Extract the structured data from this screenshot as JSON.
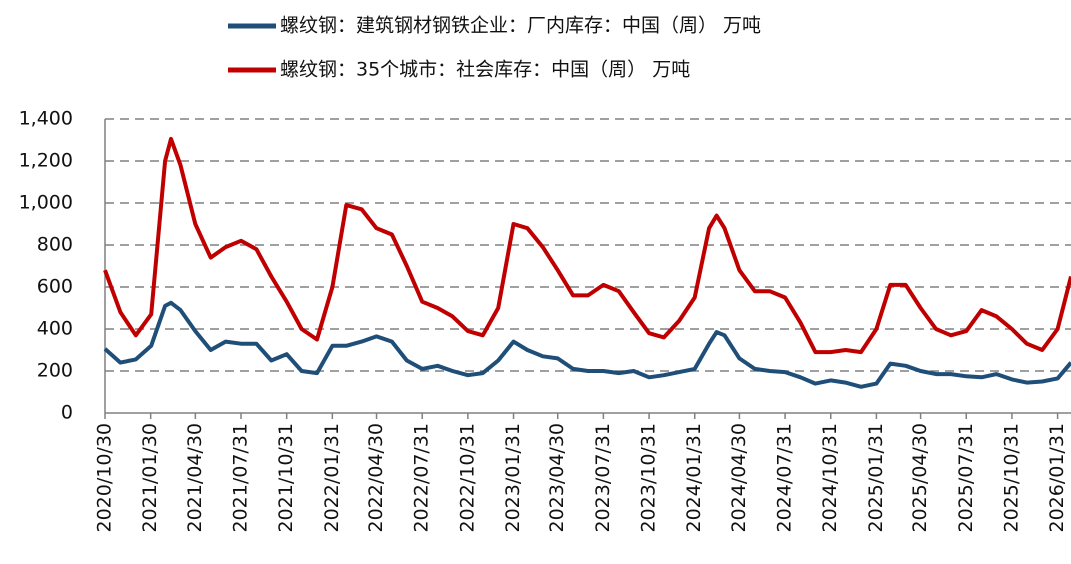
{
  "chart_data": {
    "type": "line",
    "x": [
      "2020/10/30",
      "2020/11/30",
      "2020/12/31",
      "2021/01/31",
      "2021/02/28",
      "2021/03/12",
      "2021/03/31",
      "2021/04/30",
      "2021/05/31",
      "2021/06/30",
      "2021/07/31",
      "2021/08/31",
      "2021/09/30",
      "2021/10/31",
      "2021/11/30",
      "2021/12/31",
      "2022/01/31",
      "2022/02/28",
      "2022/03/31",
      "2022/04/30",
      "2022/05/31",
      "2022/06/30",
      "2022/07/31",
      "2022/08/31",
      "2022/09/30",
      "2022/10/31",
      "2022/11/30",
      "2022/12/31",
      "2023/01/31",
      "2023/02/28",
      "2023/03/31",
      "2023/04/30",
      "2023/05/31",
      "2023/06/30",
      "2023/07/31",
      "2023/08/31",
      "2023/09/30",
      "2023/10/31",
      "2023/11/30",
      "2023/12/31",
      "2024/01/31",
      "2024/02/29",
      "2024/03/15",
      "2024/03/31",
      "2024/04/30",
      "2024/05/31",
      "2024/06/30",
      "2024/07/31",
      "2024/08/31",
      "2024/09/30",
      "2024/10/31",
      "2024/11/30",
      "2024/12/31",
      "2025/01/31",
      "2025/02/28",
      "2025/03/31",
      "2025/04/30",
      "2025/05/31",
      "2025/06/30",
      "2025/07/31",
      "2025/08/31",
      "2025/09/30",
      "2025/10/31",
      "2025/11/30",
      "2025/12/31",
      "2026/01/31",
      "2026/02/27"
    ],
    "series": [
      {
        "name": "螺纹钢：建筑钢材钢铁企业：厂内库存：中国（周） 万吨",
        "color": "#1f4e79",
        "values": [
          305,
          240,
          255,
          320,
          510,
          525,
          490,
          390,
          300,
          340,
          330,
          330,
          250,
          280,
          200,
          190,
          320,
          320,
          340,
          365,
          340,
          250,
          210,
          225,
          200,
          180,
          190,
          250,
          340,
          300,
          270,
          260,
          210,
          200,
          200,
          190,
          200,
          170,
          180,
          195,
          210,
          330,
          385,
          370,
          260,
          210,
          200,
          195,
          170,
          140,
          155,
          145,
          125,
          140,
          235,
          225,
          200,
          185,
          185,
          175,
          170,
          185,
          160,
          145,
          150,
          165,
          240
        ]
      },
      {
        "name": "螺纹钢：35个城市：社会库存：中国（周） 万吨",
        "color": "#c00000",
        "values": [
          680,
          480,
          370,
          470,
          1200,
          1305,
          1180,
          900,
          740,
          790,
          820,
          780,
          650,
          530,
          400,
          350,
          600,
          990,
          970,
          880,
          850,
          700,
          530,
          500,
          460,
          390,
          370,
          500,
          900,
          880,
          790,
          680,
          560,
          560,
          610,
          580,
          480,
          380,
          360,
          440,
          550,
          880,
          940,
          880,
          680,
          580,
          580,
          550,
          430,
          290,
          290,
          300,
          290,
          400,
          610,
          610,
          500,
          400,
          370,
          390,
          490,
          460,
          400,
          330,
          300,
          400,
          650
        ]
      }
    ],
    "xlim": [
      "2020/10/30",
      "2026/02/27"
    ],
    "xticks": [
      "2020/10/30",
      "2021/01/30",
      "2021/04/30",
      "2021/07/31",
      "2021/10/31",
      "2022/01/31",
      "2022/04/30",
      "2022/07/31",
      "2022/10/31",
      "2023/01/31",
      "2023/04/30",
      "2023/07/31",
      "2023/10/31",
      "2024/01/31",
      "2024/04/30",
      "2024/07/31",
      "2024/10/31",
      "2025/01/31",
      "2025/04/30",
      "2025/07/31",
      "2025/10/31",
      "2026/01/31"
    ],
    "ylim": [
      0,
      1400
    ],
    "yticks": [
      0,
      200,
      400,
      600,
      800,
      {
        "value": 1000,
        "label": "1,000"
      },
      {
        "value": 1200,
        "label": "1,200"
      },
      {
        "value": 1400,
        "label": "1,400"
      }
    ],
    "grid": true
  }
}
